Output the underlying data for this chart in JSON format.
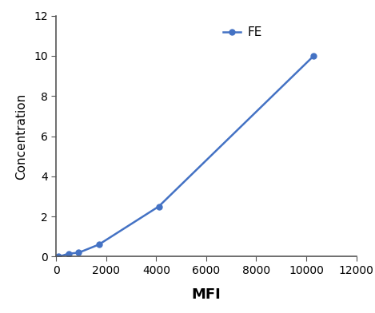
{
  "x": [
    100,
    500,
    900,
    1700,
    4100,
    10300
  ],
  "y": [
    0.0,
    0.15,
    0.2,
    0.6,
    2.5,
    10.0
  ],
  "line_color": "#4472C4",
  "marker": "o",
  "marker_size": 5,
  "line_width": 1.8,
  "xlabel": "MFI",
  "ylabel": "Concentration",
  "xlabel_fontsize": 13,
  "ylabel_fontsize": 11,
  "xlabel_fontweight": "bold",
  "ylabel_fontweight": "normal",
  "xlim": [
    0,
    12000
  ],
  "ylim": [
    0,
    12
  ],
  "xticks": [
    0,
    2000,
    4000,
    6000,
    8000,
    10000,
    12000
  ],
  "yticks": [
    0,
    2,
    4,
    6,
    8,
    10,
    12
  ],
  "legend_label": "FE",
  "legend_fontsize": 11,
  "tick_fontsize": 10,
  "background_color": "#ffffff",
  "spine_color": "#555555"
}
